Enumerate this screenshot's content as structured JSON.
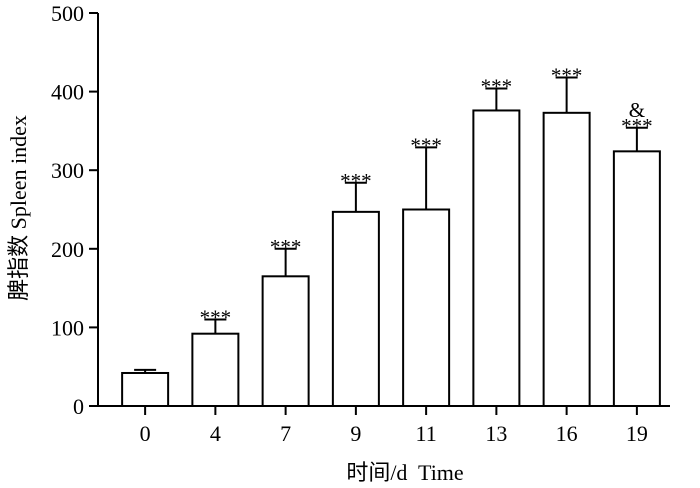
{
  "chart_data": {
    "type": "bar",
    "xlabel": "时间/d  Time",
    "ylabel": "脾指数 Spleen index",
    "categories": [
      "0",
      "4",
      "7",
      "9",
      "11",
      "13",
      "16",
      "19"
    ],
    "values": [
      42,
      92,
      165,
      247,
      250,
      376,
      373,
      324
    ],
    "errors": [
      4,
      18,
      35,
      37,
      79,
      28,
      45,
      30
    ],
    "annotations": [
      "",
      "***",
      "***",
      "***",
      "***",
      "***",
      "***",
      "***"
    ],
    "extra_annotations": [
      "",
      "",
      "",
      "",
      "",
      "",
      "",
      "&"
    ],
    "ylim": [
      0,
      500
    ],
    "yticks": [
      0,
      100,
      200,
      300,
      400,
      500
    ],
    "grid": false,
    "bar_fill": "#ffffff",
    "bar_stroke": "#000000"
  }
}
